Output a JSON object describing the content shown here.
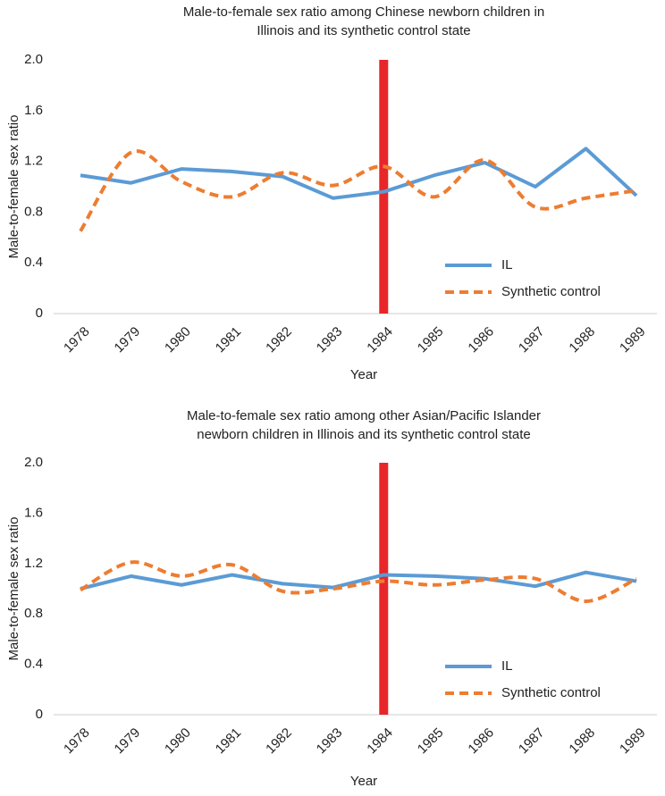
{
  "chart_data": [
    {
      "type": "line",
      "title": "Male-to-female sex ratio among Chinese newborn children in Illinois and its synthetic control state",
      "xlabel": "Year",
      "ylabel": "Male-to-female sex ratio",
      "categories": [
        "1978",
        "1979",
        "1980",
        "1981",
        "1982",
        "1983",
        "1984",
        "1985",
        "1986",
        "1987",
        "1988",
        "1989"
      ],
      "series": [
        {
          "name": "IL",
          "color": "#5b9bd5",
          "values": [
            1.09,
            1.03,
            1.14,
            1.12,
            1.08,
            0.91,
            0.96,
            1.09,
            1.19,
            1.0,
            1.3,
            0.93
          ]
        },
        {
          "name": "Synthetic control",
          "color": "#ed7d31",
          "dashed": true,
          "smooth": true,
          "values": [
            0.65,
            1.27,
            1.04,
            0.92,
            1.11,
            1.01,
            1.16,
            0.92,
            1.21,
            0.84,
            0.91,
            0.97
          ]
        }
      ],
      "vline": {
        "category": 6,
        "color": "#e8262a"
      },
      "ylim": [
        0,
        2
      ],
      "yticks": [
        0,
        0.4,
        0.8,
        1.2,
        1.6,
        {
          "value": 2,
          "label": "2.0"
        }
      ],
      "grid": false,
      "legend": "lower right"
    },
    {
      "type": "line",
      "title": "Male-to-female sex ratio among other Asian/Pacific Islander newborn children in Illinois and its synthetic control state",
      "xlabel": "Year",
      "ylabel": "Male-to-female sex ratio",
      "categories": [
        "1978",
        "1979",
        "1980",
        "1981",
        "1982",
        "1983",
        "1984",
        "1985",
        "1986",
        "1987",
        "1988",
        "1989"
      ],
      "series": [
        {
          "name": "IL",
          "color": "#5b9bd5",
          "values": [
            1.0,
            1.1,
            1.03,
            1.11,
            1.04,
            1.01,
            1.11,
            1.1,
            1.08,
            1.02,
            1.13,
            1.06
          ]
        },
        {
          "name": "Synthetic control",
          "color": "#ed7d31",
          "dashed": true,
          "smooth": true,
          "values": [
            0.99,
            1.21,
            1.1,
            1.19,
            0.98,
            1.0,
            1.06,
            1.03,
            1.07,
            1.08,
            0.9,
            1.08
          ]
        }
      ],
      "vline": {
        "category": 6,
        "color": "#e8262a"
      },
      "ylim": [
        0,
        2
      ],
      "yticks": [
        0,
        0.4,
        0.8,
        1.2,
        1.6,
        {
          "value": 2,
          "label": "2.0"
        }
      ],
      "grid": false,
      "legend": "lower right"
    }
  ]
}
